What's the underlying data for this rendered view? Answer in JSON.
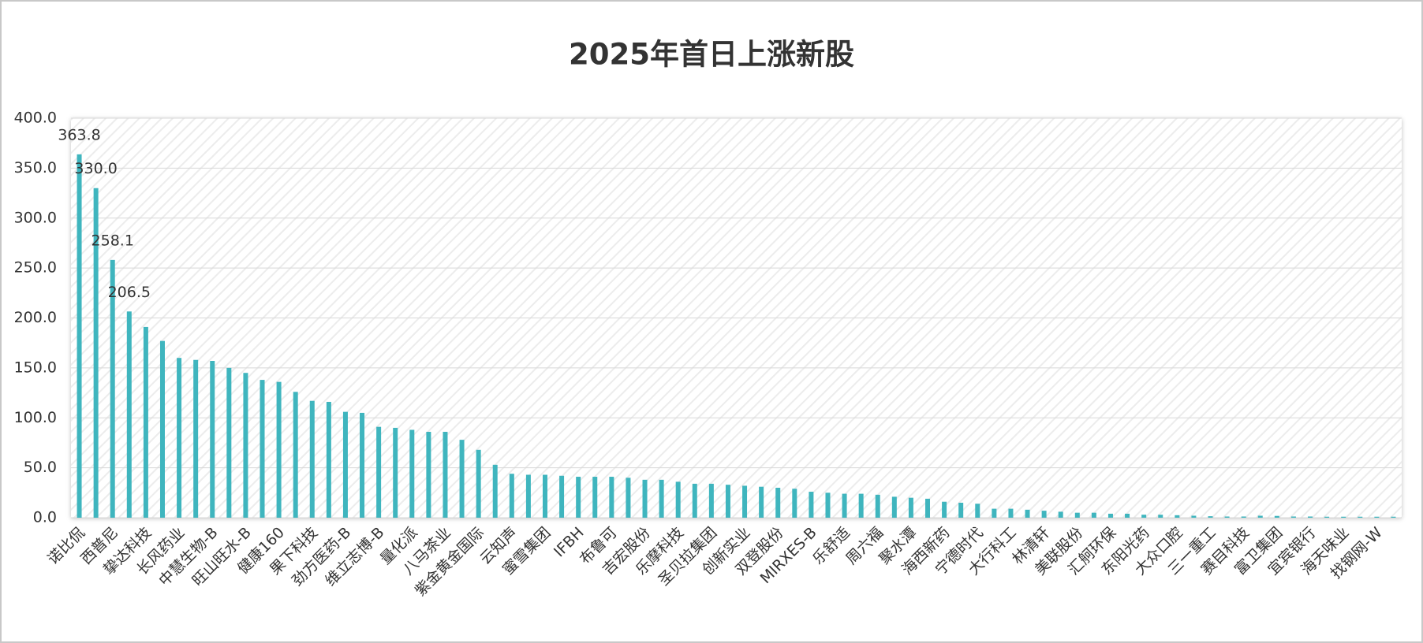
{
  "chart_data": {
    "type": "bar",
    "title": "2025年首日上涨新股",
    "categories": [
      "诺比侃",
      null,
      "西普尼",
      null,
      "挚达科技",
      null,
      "长风药业",
      null,
      "中慧生物-B",
      null,
      "旺山旺水-B",
      null,
      "健康160",
      null,
      "果下科技",
      null,
      "劲方医药-B",
      null,
      "维立志博-B",
      null,
      "量化派",
      null,
      "八马茶业",
      null,
      "紫金黄金国际",
      null,
      "云知声",
      null,
      "蜜雪集团",
      null,
      "IFBH",
      null,
      "布鲁可",
      null,
      "吉宏股份",
      null,
      "乐摩科技",
      null,
      "圣贝拉集团",
      null,
      "创新实业",
      null,
      "双登股份",
      null,
      "MIRXES-B",
      null,
      "乐舒适",
      null,
      "周六福",
      null,
      "聚水潭",
      null,
      "海西新药",
      null,
      "宁德时代",
      null,
      "大行科工",
      null,
      "林清轩",
      null,
      "美联股份",
      null,
      "汇舸环保",
      null,
      "东阳光药",
      null,
      "大众口腔",
      null,
      "三一重工",
      null,
      "赛目科技",
      null,
      "富卫集团",
      null,
      "宜宾银行",
      null,
      "海天味业",
      null,
      "找钢网-W",
      null
    ],
    "values": [
      363.8,
      330.0,
      258.1,
      206.5,
      191,
      177,
      160,
      158,
      157,
      150,
      145,
      138,
      136,
      126,
      117,
      116,
      106,
      105,
      91,
      90,
      88,
      86,
      86,
      78,
      68,
      53,
      44,
      43,
      43,
      42,
      41,
      41,
      41,
      40,
      38,
      38,
      36,
      34,
      34,
      33,
      32,
      31,
      30,
      29,
      26,
      25,
      24,
      24,
      23,
      21,
      20,
      19,
      16,
      15,
      14,
      9,
      9,
      8,
      7,
      6,
      5,
      5,
      4,
      4,
      3,
      3,
      2.5,
      2,
      1.5,
      1.2,
      1.2,
      2,
      1.8,
      1.2,
      1.2,
      1,
      1,
      1,
      1,
      1
    ],
    "value_labels": [
      "363.8",
      "330.0",
      "258.1",
      "206.5",
      null,
      null,
      null,
      null,
      null,
      null,
      null,
      null,
      null,
      null,
      null,
      null,
      null,
      null,
      null,
      null,
      null,
      null,
      null,
      null,
      null,
      null,
      null,
      null,
      null,
      null,
      null,
      null,
      null,
      null,
      null,
      null,
      null,
      null,
      null,
      null,
      null,
      null,
      null,
      null,
      null,
      null,
      null,
      null,
      null,
      null,
      null,
      null,
      null,
      null,
      null,
      null,
      null,
      null,
      null,
      null,
      null,
      null,
      null,
      null,
      null,
      null,
      null,
      null,
      null,
      null,
      null,
      null,
      null,
      null,
      null,
      null,
      null,
      null,
      null,
      null
    ],
    "color": "#3fb5be",
    "ylim": [
      0,
      400
    ],
    "yticks": [
      {
        "value": 0,
        "label": "0.0"
      },
      {
        "value": 50,
        "label": "50.0"
      },
      {
        "value": 100,
        "label": "100.0"
      },
      {
        "value": 150,
        "label": "150.0"
      },
      {
        "value": 200,
        "label": "200.0"
      },
      {
        "value": 250,
        "label": "250.0"
      },
      {
        "value": 300,
        "label": "300.0"
      },
      {
        "value": 350,
        "label": "350.0"
      },
      {
        "value": 400,
        "label": "400.0"
      }
    ],
    "grid": true
  }
}
